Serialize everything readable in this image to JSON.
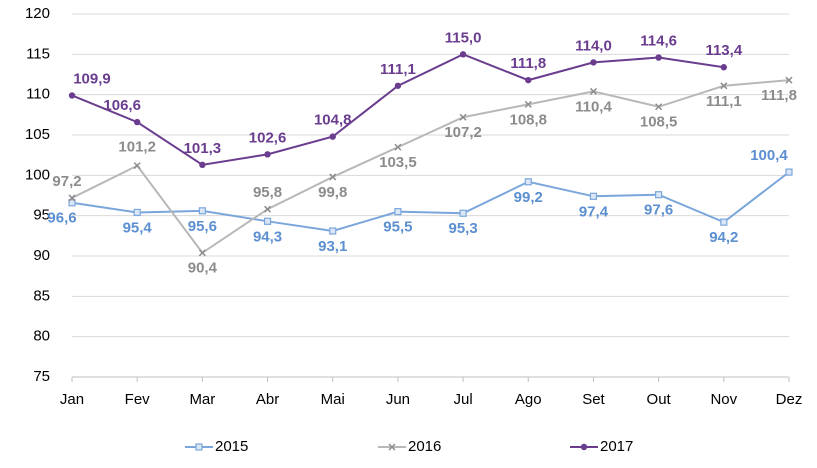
{
  "chart_data": {
    "type": "line",
    "categories": [
      "Jan",
      "Fev",
      "Mar",
      "Abr",
      "Mai",
      "Jun",
      "Jul",
      "Ago",
      "Set",
      "Out",
      "Nov",
      "Dez"
    ],
    "series": [
      {
        "name": "2015",
        "color": "#7aa6dc",
        "label_color": "#5b8fd0",
        "marker": "square",
        "values": [
          96.6,
          95.4,
          95.6,
          94.3,
          93.1,
          95.5,
          95.3,
          99.2,
          97.4,
          97.6,
          94.2,
          100.4
        ],
        "value_labels": [
          "96,6",
          "95,4",
          "95,6",
          "94,3",
          "93,1",
          "95,5",
          "95,3",
          "99,2",
          "97,4",
          "97,6",
          "94,2",
          "100,4"
        ]
      },
      {
        "name": "2016",
        "color": "#b8b8b8",
        "label_color": "#8c8c8c",
        "marker": "x",
        "values": [
          97.2,
          101.2,
          90.4,
          95.8,
          99.8,
          103.5,
          107.2,
          108.8,
          110.4,
          108.5,
          111.1,
          111.8
        ],
        "value_labels": [
          "97,2",
          "101,2",
          "90,4",
          "95,8",
          "99,8",
          "103,5",
          "107,2",
          "108,8",
          "110,4",
          "108,5",
          "111,1",
          "111,8"
        ]
      },
      {
        "name": "2017",
        "color": "#6a3d8f",
        "label_color": "#6a3d8f",
        "marker": "circle",
        "values": [
          109.9,
          106.6,
          101.3,
          102.6,
          104.8,
          111.1,
          115.0,
          111.8,
          114.0,
          114.6,
          113.4,
          null
        ],
        "value_labels": [
          "109,9",
          "106,6",
          "101,3",
          "102,6",
          "104,8",
          "111,1",
          "115,0",
          "111,8",
          "114,0",
          "114,6",
          "113,4",
          null
        ]
      }
    ],
    "ylim": [
      75,
      120
    ],
    "yticks": [
      75,
      80,
      85,
      90,
      95,
      100,
      105,
      110,
      115,
      120
    ],
    "grid": true,
    "legend": "bottom"
  }
}
